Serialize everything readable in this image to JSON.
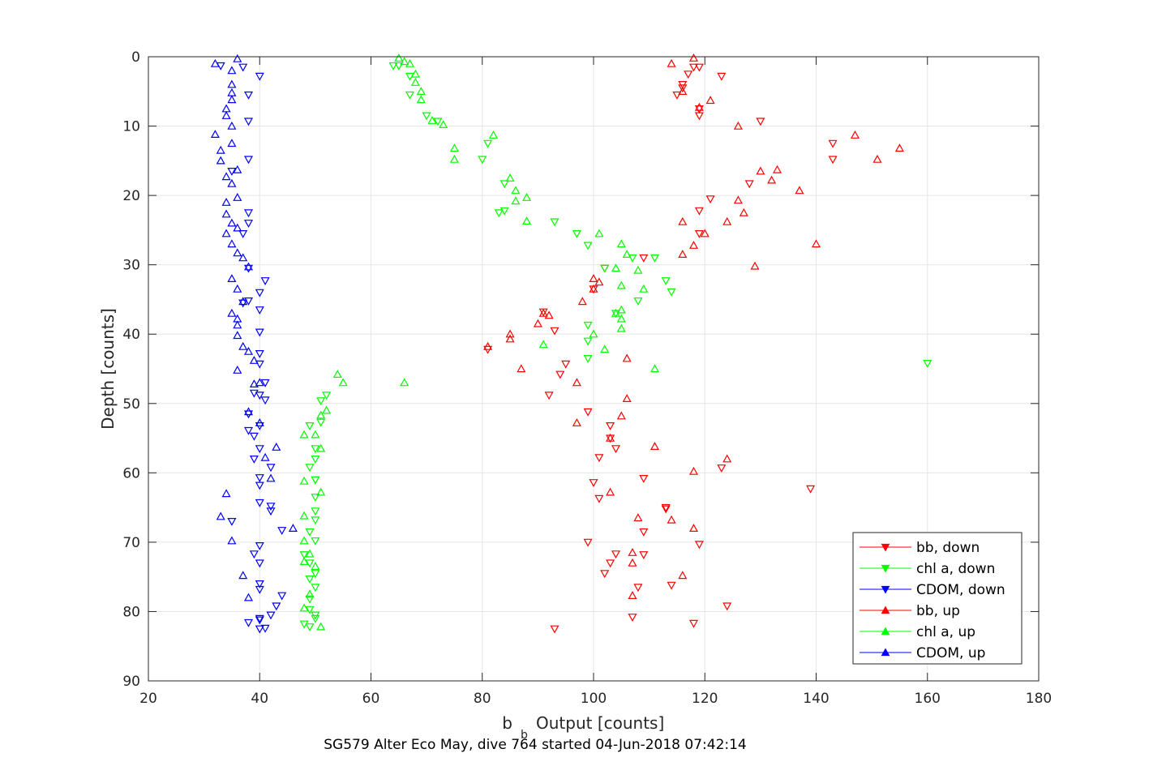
{
  "chart_data": {
    "type": "scatter",
    "title": "",
    "caption": "SG579 Alter Eco May, dive 764 started 04-Jun-2018 07:42:14",
    "xlabel": "Output [counts]",
    "xlabel_prefix": "b",
    "xlabel_subscript": "b",
    "ylabel": "Depth [counts]",
    "xlim": [
      20,
      180
    ],
    "ylim": [
      0,
      90
    ],
    "y_reversed": true,
    "grid": true,
    "x_ticks": [
      "20",
      "40",
      "60",
      "80",
      "100",
      "120",
      "140",
      "160",
      "180"
    ],
    "y_ticks": [
      "0",
      "10",
      "20",
      "30",
      "40",
      "50",
      "60",
      "70",
      "80",
      "90"
    ],
    "legend_position": "bottom-right",
    "series": [
      {
        "name": "bb, down",
        "color": "#ff0000",
        "marker": "triangle-down",
        "points": [
          [
            118,
            1.5
          ],
          [
            119,
            1.5
          ],
          [
            117,
            2.5
          ],
          [
            123,
            2.8
          ],
          [
            116,
            4
          ],
          [
            116,
            4.5
          ],
          [
            115,
            5.5
          ],
          [
            119,
            7.5
          ],
          [
            119,
            8.5
          ],
          [
            130,
            9.3
          ],
          [
            143,
            12.5
          ],
          [
            143,
            14.8
          ],
          [
            128,
            18.3
          ],
          [
            121,
            20.5
          ],
          [
            119,
            22.2
          ],
          [
            119,
            25.5
          ],
          [
            109,
            29
          ],
          [
            102,
            30.5
          ],
          [
            100,
            33.5
          ],
          [
            91,
            36.8
          ],
          [
            93,
            39.5
          ],
          [
            81,
            42.2
          ],
          [
            95,
            44.3
          ],
          [
            94,
            45.8
          ],
          [
            92,
            48.8
          ],
          [
            99,
            51.2
          ],
          [
            103,
            53.2
          ],
          [
            103,
            55
          ],
          [
            104,
            56.5
          ],
          [
            101,
            57.8
          ],
          [
            109,
            60.8
          ],
          [
            123,
            59.3
          ],
          [
            139,
            62.3
          ],
          [
            101,
            63.7
          ],
          [
            113,
            65
          ],
          [
            119,
            70.3
          ],
          [
            109,
            68.5
          ],
          [
            109,
            71.8
          ],
          [
            103,
            73
          ],
          [
            102,
            74.5
          ],
          [
            114,
            76.2
          ],
          [
            124,
            79.2
          ],
          [
            107,
            80.8
          ],
          [
            118,
            81.7
          ],
          [
            93,
            82.5
          ],
          [
            113,
            65.2
          ],
          [
            104,
            71.7
          ],
          [
            99,
            70
          ],
          [
            100,
            61.4
          ],
          [
            108,
            76.5
          ]
        ]
      },
      {
        "name": "chl a, down",
        "color": "#00ff00",
        "marker": "triangle-down",
        "points": [
          [
            64,
            1.3
          ],
          [
            65,
            1.3
          ],
          [
            67,
            2.8
          ],
          [
            67,
            5.5
          ],
          [
            70,
            8.5
          ],
          [
            72,
            9.3
          ],
          [
            81,
            12.5
          ],
          [
            80,
            14.8
          ],
          [
            84,
            18.3
          ],
          [
            84,
            22.2
          ],
          [
            83,
            22.5
          ],
          [
            93,
            23.8
          ],
          [
            97,
            25.5
          ],
          [
            99,
            27.2
          ],
          [
            107,
            29
          ],
          [
            111,
            29
          ],
          [
            102,
            30.5
          ],
          [
            108,
            35.2
          ],
          [
            113,
            32.3
          ],
          [
            114,
            33.9
          ],
          [
            104,
            37
          ],
          [
            99,
            38.7
          ],
          [
            99,
            41
          ],
          [
            160,
            44.2
          ],
          [
            99,
            43.5
          ],
          [
            51,
            49.6
          ],
          [
            51,
            52.7
          ],
          [
            49,
            53.2
          ],
          [
            50,
            56.5
          ],
          [
            50,
            58
          ],
          [
            49,
            59.2
          ],
          [
            50,
            61
          ],
          [
            50,
            63.5
          ],
          [
            50,
            65.5
          ],
          [
            49,
            68.5
          ],
          [
            48,
            71.8
          ],
          [
            49,
            73
          ],
          [
            50,
            74.5
          ],
          [
            50,
            76.5
          ],
          [
            49,
            78.2
          ],
          [
            50,
            80.5
          ],
          [
            50,
            81
          ],
          [
            48,
            81.8
          ],
          [
            49,
            82.2
          ],
          [
            50,
            61
          ],
          [
            50,
            69.8
          ],
          [
            49,
            75.3
          ],
          [
            50,
            66.8
          ],
          [
            52,
            48.8
          ],
          [
            49,
            79.7
          ]
        ]
      },
      {
        "name": "CDOM, down",
        "color": "#0000ff",
        "marker": "triangle-down",
        "points": [
          [
            33,
            1.3
          ],
          [
            37,
            1.5
          ],
          [
            40,
            2.8
          ],
          [
            38,
            5.5
          ],
          [
            38,
            9.3
          ],
          [
            38,
            14.8
          ],
          [
            35,
            16.5
          ],
          [
            38,
            22.5
          ],
          [
            38,
            24
          ],
          [
            37,
            25.5
          ],
          [
            38,
            30.5
          ],
          [
            41,
            32.3
          ],
          [
            40,
            34
          ],
          [
            38,
            35.2
          ],
          [
            40,
            36.5
          ],
          [
            40,
            39.7
          ],
          [
            40,
            42.8
          ],
          [
            40,
            44.3
          ],
          [
            41,
            47
          ],
          [
            39,
            48.5
          ],
          [
            41,
            49.5
          ],
          [
            38,
            51.5
          ],
          [
            39,
            54.7
          ],
          [
            40,
            53.2
          ],
          [
            40,
            56.5
          ],
          [
            39,
            58
          ],
          [
            40,
            60.7
          ],
          [
            42,
            59.2
          ],
          [
            40,
            61.8
          ],
          [
            42,
            64.8
          ],
          [
            40,
            64.3
          ],
          [
            39,
            71.7
          ],
          [
            40,
            73
          ],
          [
            40,
            76
          ],
          [
            43,
            79.2
          ],
          [
            44,
            77.7
          ],
          [
            40,
            81.2
          ],
          [
            40,
            82.5
          ],
          [
            42,
            80.5
          ],
          [
            41,
            82.4
          ],
          [
            38,
            81.6
          ],
          [
            40,
            81
          ],
          [
            40,
            70.5
          ],
          [
            40,
            76.8
          ],
          [
            40,
            48.8
          ],
          [
            42,
            65.5
          ],
          [
            38,
            53.9
          ],
          [
            44,
            68.3
          ],
          [
            37,
            35.5
          ],
          [
            35,
            67
          ]
        ]
      },
      {
        "name": "bb, up",
        "color": "#ff0000",
        "marker": "triangle-up",
        "points": [
          [
            118,
            0.2
          ],
          [
            114,
            1
          ],
          [
            116,
            5
          ],
          [
            121,
            6.3
          ],
          [
            119,
            7.3
          ],
          [
            126,
            10
          ],
          [
            147,
            11.3
          ],
          [
            155,
            13.2
          ],
          [
            151,
            14.8
          ],
          [
            130,
            16.5
          ],
          [
            133,
            16.3
          ],
          [
            132,
            17.8
          ],
          [
            137,
            19.3
          ],
          [
            126,
            20.7
          ],
          [
            127,
            22.5
          ],
          [
            116,
            23.8
          ],
          [
            124,
            23.8
          ],
          [
            120,
            25.5
          ],
          [
            118,
            27.2
          ],
          [
            140,
            27
          ],
          [
            116,
            28.5
          ],
          [
            129,
            30.2
          ],
          [
            100,
            32
          ],
          [
            101,
            32.5
          ],
          [
            100,
            33.5
          ],
          [
            98,
            35.3
          ],
          [
            91,
            37
          ],
          [
            92,
            37.3
          ],
          [
            90,
            38.5
          ],
          [
            85,
            40
          ],
          [
            85,
            40.7
          ],
          [
            81,
            41.8
          ],
          [
            106,
            43.5
          ],
          [
            87,
            45
          ],
          [
            97,
            47
          ],
          [
            106,
            49.3
          ],
          [
            97,
            52.8
          ],
          [
            105,
            51.8
          ],
          [
            103,
            55
          ],
          [
            111,
            56.2
          ],
          [
            124,
            58
          ],
          [
            118,
            59.8
          ],
          [
            103,
            62.8
          ],
          [
            108,
            66.5
          ],
          [
            114,
            66.8
          ],
          [
            118,
            68
          ],
          [
            107,
            71.5
          ],
          [
            107,
            73
          ],
          [
            116,
            74.8
          ],
          [
            107,
            77.7
          ]
        ]
      },
      {
        "name": "chl a, up",
        "color": "#00ff00",
        "marker": "triangle-up",
        "points": [
          [
            65,
            0.2
          ],
          [
            66,
            0.7
          ],
          [
            67,
            1
          ],
          [
            68,
            2.5
          ],
          [
            68,
            3.7
          ],
          [
            69,
            5
          ],
          [
            69,
            6.2
          ],
          [
            71,
            9.2
          ],
          [
            73,
            9.8
          ],
          [
            82,
            11.3
          ],
          [
            75,
            13.2
          ],
          [
            75,
            14.8
          ],
          [
            85,
            17.5
          ],
          [
            86,
            19.3
          ],
          [
            88,
            20.3
          ],
          [
            86,
            20.8
          ],
          [
            88,
            23.7
          ],
          [
            101,
            25.5
          ],
          [
            105,
            27
          ],
          [
            106,
            28.5
          ],
          [
            104,
            30.5
          ],
          [
            108,
            30.8
          ],
          [
            105,
            33
          ],
          [
            109,
            33.5
          ],
          [
            105,
            36.5
          ],
          [
            104,
            37
          ],
          [
            105,
            37.8
          ],
          [
            100,
            40
          ],
          [
            105,
            39.2
          ],
          [
            91,
            41.5
          ],
          [
            102,
            42.2
          ],
          [
            111,
            45
          ],
          [
            66,
            47
          ],
          [
            54,
            45.8
          ],
          [
            55,
            47
          ],
          [
            52,
            51
          ],
          [
            51,
            51.7
          ],
          [
            48,
            54.5
          ],
          [
            51,
            62.8
          ],
          [
            48,
            61.2
          ],
          [
            51,
            56.5
          ],
          [
            50,
            54.5
          ],
          [
            48,
            66.2
          ],
          [
            48,
            69.8
          ],
          [
            49,
            71.7
          ],
          [
            51,
            82.2
          ],
          [
            48,
            79.5
          ],
          [
            50,
            73.5
          ],
          [
            49,
            77.5
          ],
          [
            48,
            72.8
          ]
        ]
      },
      {
        "name": "CDOM, up",
        "color": "#0000ff",
        "marker": "triangle-up",
        "points": [
          [
            36,
            0.3
          ],
          [
            32,
            1
          ],
          [
            35,
            2
          ],
          [
            35,
            4
          ],
          [
            35,
            5.2
          ],
          [
            35,
            6.2
          ],
          [
            34,
            7.5
          ],
          [
            34,
            8.5
          ],
          [
            35,
            10
          ],
          [
            32,
            11.2
          ],
          [
            35,
            12.5
          ],
          [
            33,
            13.5
          ],
          [
            33,
            15
          ],
          [
            36,
            16.3
          ],
          [
            34,
            17.3
          ],
          [
            35,
            18.3
          ],
          [
            36,
            20.3
          ],
          [
            34,
            21
          ],
          [
            34,
            22.7
          ],
          [
            35,
            24
          ],
          [
            36,
            24.7
          ],
          [
            34,
            25.5
          ],
          [
            35,
            27
          ],
          [
            36,
            28.3
          ],
          [
            37,
            29
          ],
          [
            38,
            30.3
          ],
          [
            35,
            32
          ],
          [
            36,
            33.5
          ],
          [
            37,
            35.3
          ],
          [
            35,
            37
          ],
          [
            36,
            37.8
          ],
          [
            36,
            38.7
          ],
          [
            36,
            40.2
          ],
          [
            37,
            41.8
          ],
          [
            38,
            42.5
          ],
          [
            39,
            43.8
          ],
          [
            36,
            45.2
          ],
          [
            39,
            47.2
          ],
          [
            40,
            47
          ],
          [
            38,
            51.2
          ],
          [
            40,
            52.8
          ],
          [
            43,
            56.3
          ],
          [
            41,
            57.8
          ],
          [
            42,
            60.8
          ],
          [
            34,
            63
          ],
          [
            33,
            66.3
          ],
          [
            35,
            69.8
          ],
          [
            46,
            68
          ],
          [
            37,
            74.8
          ],
          [
            38,
            78
          ]
        ]
      }
    ]
  }
}
